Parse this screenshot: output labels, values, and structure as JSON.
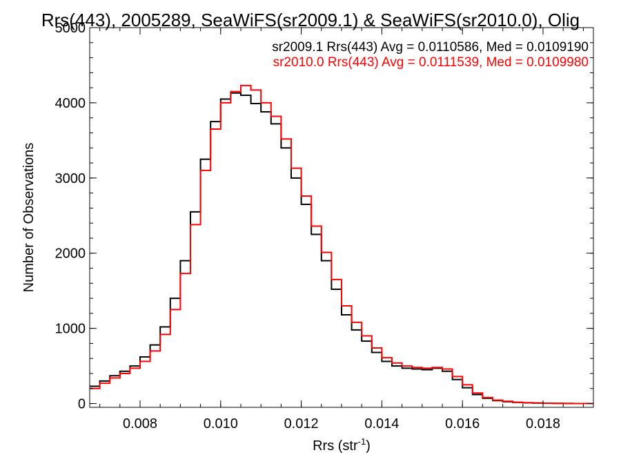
{
  "chart_data": {
    "type": "line",
    "title": "Rrs(443), 2005289, SeaWiFS(sr2009.1) & SeaWiFS(sr2010.0), Olig",
    "xlabel_main": "Rrs (str",
    "xlabel_sup": "-1",
    "xlabel_close": ")",
    "ylabel": "Number of Observations",
    "xlim": [
      0.00675,
      0.01925
    ],
    "ylim": [
      -50,
      5000
    ],
    "x_ticks": [
      "0.008",
      "0.010",
      "0.012",
      "0.014",
      "0.016",
      "0.018"
    ],
    "y_ticks": [
      "0",
      "1000",
      "2000",
      "3000",
      "4000",
      "5000"
    ],
    "grid": false,
    "legend_position": "top-right",
    "series": [
      {
        "name": "sr2009.1 Rrs(443) Avg = 0.0110586, Med = 0.0109190",
        "color": "#000000",
        "x": [
          0.00675,
          0.007,
          0.00725,
          0.0075,
          0.00775,
          0.008,
          0.00825,
          0.0085,
          0.00875,
          0.009,
          0.00925,
          0.0095,
          0.00975,
          0.01,
          0.01025,
          0.0105,
          0.01075,
          0.011,
          0.01125,
          0.0115,
          0.01175,
          0.012,
          0.01225,
          0.0125,
          0.01275,
          0.013,
          0.01325,
          0.0135,
          0.01375,
          0.014,
          0.01425,
          0.0145,
          0.01475,
          0.015,
          0.01525,
          0.0155,
          0.01575,
          0.016,
          0.01625,
          0.0165,
          0.01675,
          0.017,
          0.01725,
          0.0175,
          0.01775,
          0.018,
          0.01825,
          0.0185,
          0.01875,
          0.019,
          0.01925
        ],
        "y": [
          230,
          300,
          370,
          430,
          500,
          620,
          780,
          1020,
          1400,
          1900,
          2550,
          3250,
          3750,
          4050,
          4130,
          4100,
          3990,
          3880,
          3720,
          3400,
          3000,
          2650,
          2250,
          1900,
          1520,
          1180,
          980,
          830,
          680,
          560,
          500,
          470,
          460,
          450,
          470,
          430,
          320,
          210,
          120,
          70,
          40,
          25,
          15,
          10,
          6,
          4,
          3,
          2,
          1,
          0,
          0
        ]
      },
      {
        "name": "sr2010.0 Rrs(443) Avg = 0.0111539, Med = 0.0109980",
        "color": "#ff0000",
        "x": [
          0.00675,
          0.007,
          0.00725,
          0.0075,
          0.00775,
          0.008,
          0.00825,
          0.0085,
          0.00875,
          0.009,
          0.00925,
          0.0095,
          0.00975,
          0.01,
          0.01025,
          0.0105,
          0.01075,
          0.011,
          0.01125,
          0.0115,
          0.01175,
          0.012,
          0.01225,
          0.0125,
          0.01275,
          0.013,
          0.01325,
          0.0135,
          0.01375,
          0.014,
          0.01425,
          0.0145,
          0.01475,
          0.015,
          0.01525,
          0.0155,
          0.01575,
          0.016,
          0.01625,
          0.0165,
          0.01675,
          0.017,
          0.01725,
          0.0175,
          0.01775,
          0.018,
          0.01825,
          0.0185,
          0.01875,
          0.019,
          0.01925
        ],
        "y": [
          200,
          270,
          340,
          400,
          470,
          560,
          700,
          920,
          1250,
          1730,
          2380,
          3100,
          3650,
          4000,
          4150,
          4230,
          4170,
          4000,
          3820,
          3520,
          3130,
          2760,
          2360,
          2010,
          1650,
          1300,
          1080,
          900,
          740,
          610,
          540,
          500,
          480,
          470,
          480,
          460,
          360,
          250,
          140,
          80,
          45,
          30,
          18,
          12,
          8,
          5,
          3,
          2,
          1,
          0,
          0
        ]
      }
    ]
  }
}
